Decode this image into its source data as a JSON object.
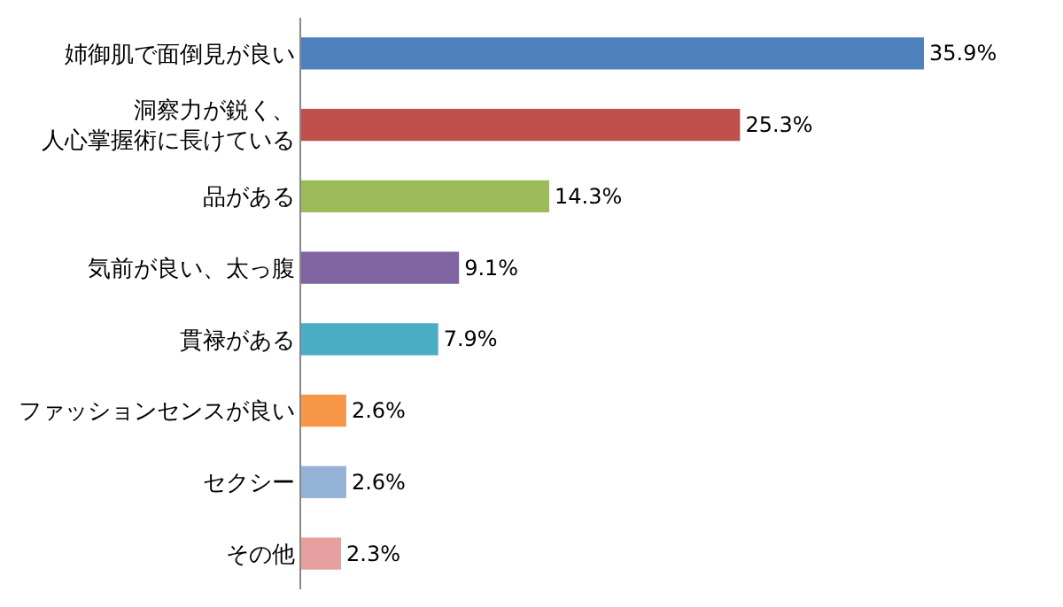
{
  "chart_data": {
    "type": "bar",
    "orientation": "horizontal",
    "categories": [
      "姉御肌で面倒見が良い",
      "洞察力が鋭く、人心掌握術に長けている",
      "品がある",
      "気前が良い、太っ腹",
      "貫禄がある",
      "ファッションセンスが良い",
      "セクシー",
      "その他"
    ],
    "values": [
      35.9,
      25.3,
      14.3,
      9.1,
      7.9,
      2.6,
      2.6,
      2.3
    ],
    "value_labels": [
      "35.9%",
      "25.3%",
      "14.3%",
      "9.1%",
      "7.9%",
      "2.6%",
      "2.6%",
      "2.3%"
    ],
    "colors": [
      "#4f81bd",
      "#c0504d",
      "#9bbb59",
      "#8064a2",
      "#4bacc6",
      "#f79646",
      "#95b3d7",
      "#e6a0a0"
    ],
    "tick_labels": "y",
    "grid": false,
    "legend": false
  }
}
